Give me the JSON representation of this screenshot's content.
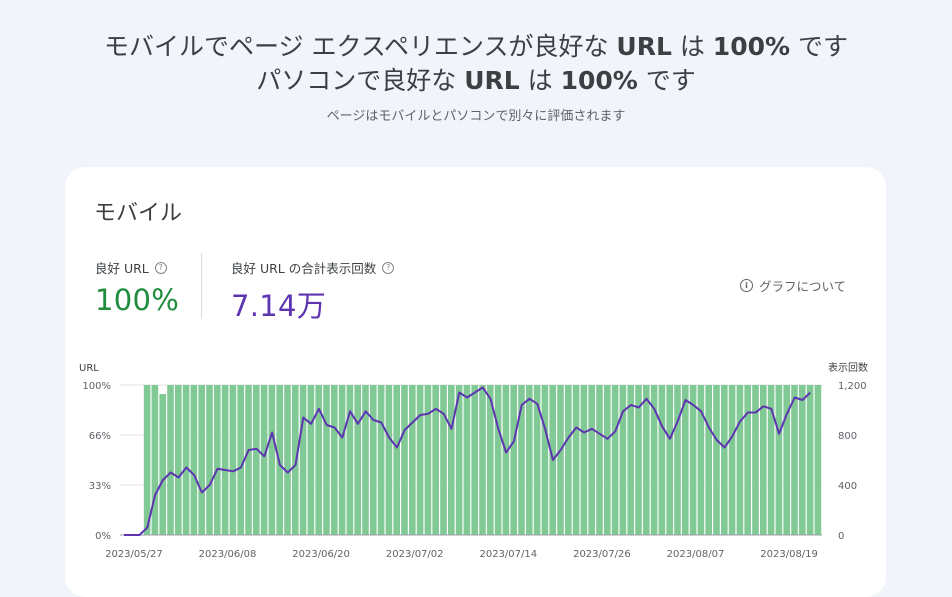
{
  "header": {
    "title_line1_a": "モバイルでページ エクスペリエンスが良好な ",
    "title_line1_b": "URL",
    "title_line1_c": " は ",
    "title_line1_d": "100%",
    "title_line1_e": " です",
    "title_line2_a": "パソコンで良好な ",
    "title_line2_b": "URL",
    "title_line2_c": " は ",
    "title_line2_d": "100%",
    "title_line2_e": " です",
    "subtitle": "ページはモバイルとパソコンで別々に評価されます"
  },
  "card": {
    "title": "モバイル",
    "metrics": [
      {
        "label": "良好 URL",
        "value": "100%",
        "color": "#1e8e3e"
      },
      {
        "label": "良好 URL の合計表示回数",
        "value": "7.14万",
        "color": "#5e35b1"
      }
    ],
    "about_label": "グラフについて"
  },
  "chart_data": {
    "type": "bar+line",
    "left_axis_label": "URL",
    "right_axis_label": "表示回数",
    "left_ticks": [
      "0%",
      "33%",
      "66%",
      "100%"
    ],
    "right_ticks": [
      "0",
      "400",
      "800",
      "1,200"
    ],
    "x_tick_labels": [
      "2023/05/27",
      "2023/06/08",
      "2023/06/20",
      "2023/07/02",
      "2023/07/14",
      "2023/07/26",
      "2023/08/07",
      "2023/08/19"
    ],
    "bar_color": "#81c995",
    "line_color": "#5e35b1",
    "bar_series": {
      "name": "良好 URL",
      "unit": "%",
      "values": [
        0,
        0,
        0,
        100,
        100,
        94,
        100,
        100,
        100,
        100,
        100,
        100,
        100,
        100,
        100,
        100,
        100,
        100,
        100,
        100,
        100,
        100,
        100,
        100,
        100,
        100,
        100,
        100,
        100,
        100,
        100,
        100,
        100,
        100,
        100,
        100,
        100,
        100,
        100,
        100,
        100,
        100,
        100,
        100,
        100,
        100,
        100,
        100,
        100,
        100,
        100,
        100,
        100,
        100,
        100,
        100,
        100,
        100,
        100,
        100,
        100,
        100,
        100,
        100,
        100,
        100,
        100,
        100,
        100,
        100,
        100,
        100,
        100,
        100,
        100,
        100,
        100,
        100,
        100,
        100,
        100,
        100,
        100,
        100,
        100,
        100,
        100,
        100,
        100,
        100
      ]
    },
    "line_series": {
      "name": "表示回数",
      "values": [
        0,
        0,
        0,
        60,
        320,
        440,
        500,
        460,
        540,
        480,
        340,
        400,
        530,
        520,
        510,
        540,
        680,
        690,
        630,
        820,
        560,
        500,
        560,
        940,
        890,
        1010,
        880,
        860,
        780,
        990,
        890,
        990,
        920,
        900,
        780,
        700,
        840,
        900,
        960,
        970,
        1010,
        970,
        850,
        1140,
        1100,
        1140,
        1180,
        1090,
        850,
        660,
        750,
        1040,
        1090,
        1050,
        850,
        600,
        680,
        780,
        860,
        820,
        850,
        810,
        770,
        830,
        990,
        1040,
        1020,
        1090,
        1010,
        870,
        770,
        910,
        1080,
        1040,
        990,
        860,
        760,
        700,
        790,
        910,
        980,
        980,
        1030,
        1010,
        810,
        970,
        1100,
        1080,
        1140
      ]
    }
  }
}
